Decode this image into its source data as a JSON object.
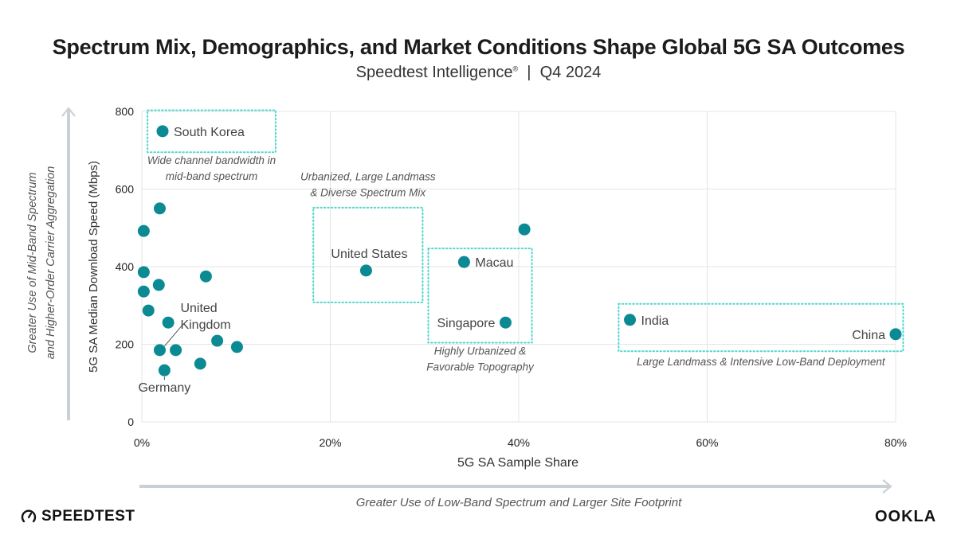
{
  "header": {
    "title": "Spectrum Mix, Demographics, and Market Conditions Shape Global 5G SA Outcomes",
    "subtitle_source": "Speedtest Intelligence",
    "subtitle_mark": "®",
    "subtitle_sep": "|",
    "subtitle_period": "Q4 2024"
  },
  "colors": {
    "dot": "#0b8a93",
    "box": "#4fd8cf",
    "grid": "#e4e4e4",
    "arrow": "#c9d1d6",
    "annotation": "#555555"
  },
  "chart_data": {
    "type": "scatter",
    "title": "Spectrum Mix, Demographics, and Market Conditions Shape Global 5G SA Outcomes",
    "subtitle": "Speedtest Intelligence® | Q4 2024",
    "xlabel": "5G SA Sample Share",
    "ylabel": "5G SA Median Download Speed (Mbps)",
    "xlim": [
      0,
      80
    ],
    "ylim": [
      0,
      800
    ],
    "xticks": [
      0,
      20,
      40,
      60,
      80
    ],
    "xtick_labels": [
      "0%",
      "20%",
      "40%",
      "60%",
      "80%"
    ],
    "yticks": [
      0,
      200,
      400,
      600,
      800
    ],
    "ytick_labels": [
      "0",
      "200",
      "400",
      "600",
      "800"
    ],
    "grid": true,
    "x_direction_label": "Greater Use of Low-Band Spectrum and Larger Site Footprint",
    "y_direction_label": [
      "Greater Use of Mid-Band Spectrum",
      "and Higher-Order Carrier Aggregation"
    ],
    "points": [
      {
        "x": 2.2,
        "y": 749,
        "label": "South Korea",
        "label_pos": "right"
      },
      {
        "x": 1.9,
        "y": 550,
        "label": ""
      },
      {
        "x": 0.2,
        "y": 492,
        "label": ""
      },
      {
        "x": 0.2,
        "y": 386,
        "label": ""
      },
      {
        "x": 1.8,
        "y": 353,
        "label": ""
      },
      {
        "x": 6.8,
        "y": 375,
        "label": ""
      },
      {
        "x": 0.2,
        "y": 336,
        "label": ""
      },
      {
        "x": 0.7,
        "y": 287,
        "label": ""
      },
      {
        "x": 2.8,
        "y": 256,
        "label": ""
      },
      {
        "x": 1.9,
        "y": 185,
        "label": "United Kingdom",
        "label_pos": "leader"
      },
      {
        "x": 3.6,
        "y": 185,
        "label": ""
      },
      {
        "x": 6.2,
        "y": 150,
        "label": ""
      },
      {
        "x": 8.0,
        "y": 209,
        "label": ""
      },
      {
        "x": 10.1,
        "y": 193,
        "label": ""
      },
      {
        "x": 2.4,
        "y": 133,
        "label": "Germany",
        "label_pos": "below"
      },
      {
        "x": 23.8,
        "y": 390,
        "label": "United States",
        "label_pos": "above"
      },
      {
        "x": 34.2,
        "y": 412,
        "label": "Macau",
        "label_pos": "right"
      },
      {
        "x": 40.6,
        "y": 496,
        "label": ""
      },
      {
        "x": 38.6,
        "y": 256,
        "label": "Singapore",
        "label_pos": "left"
      },
      {
        "x": 51.8,
        "y": 263,
        "label": "India",
        "label_pos": "right"
      },
      {
        "x": 80.0,
        "y": 226,
        "label": "China",
        "label_pos": "left"
      }
    ],
    "annotations": [
      {
        "box": {
          "x": [
            0.6,
            14.2
          ],
          "y": [
            695,
            803
          ]
        },
        "text": [
          "Wide channel bandwidth in",
          "mid-band spectrum"
        ],
        "text_at": {
          "x": 7.4,
          "y": 665
        }
      },
      {
        "box": {
          "x": [
            18.2,
            29.8
          ],
          "y": [
            308,
            552
          ]
        },
        "text": [
          "Urbanized, Large Landmass",
          "& Diverse Spectrum Mix"
        ],
        "text_at": {
          "x": 24.0,
          "y": 623
        }
      },
      {
        "box": {
          "x": [
            30.4,
            41.4
          ],
          "y": [
            204,
            447
          ]
        },
        "text": [
          "Highly Urbanized &",
          "Favorable Topography"
        ],
        "text_at": {
          "x": 35.9,
          "y": 173
        }
      },
      {
        "box": {
          "x": [
            50.6,
            80.8
          ],
          "y": [
            182,
            304
          ]
        },
        "text": [
          "Large Landmass & Intensive Low-Band Deployment"
        ],
        "text_at": {
          "x": 65.7,
          "y": 146
        }
      }
    ]
  },
  "footer": {
    "speedtest_logo": "SPEEDTEST",
    "ookla_logo": "OOKLA"
  }
}
